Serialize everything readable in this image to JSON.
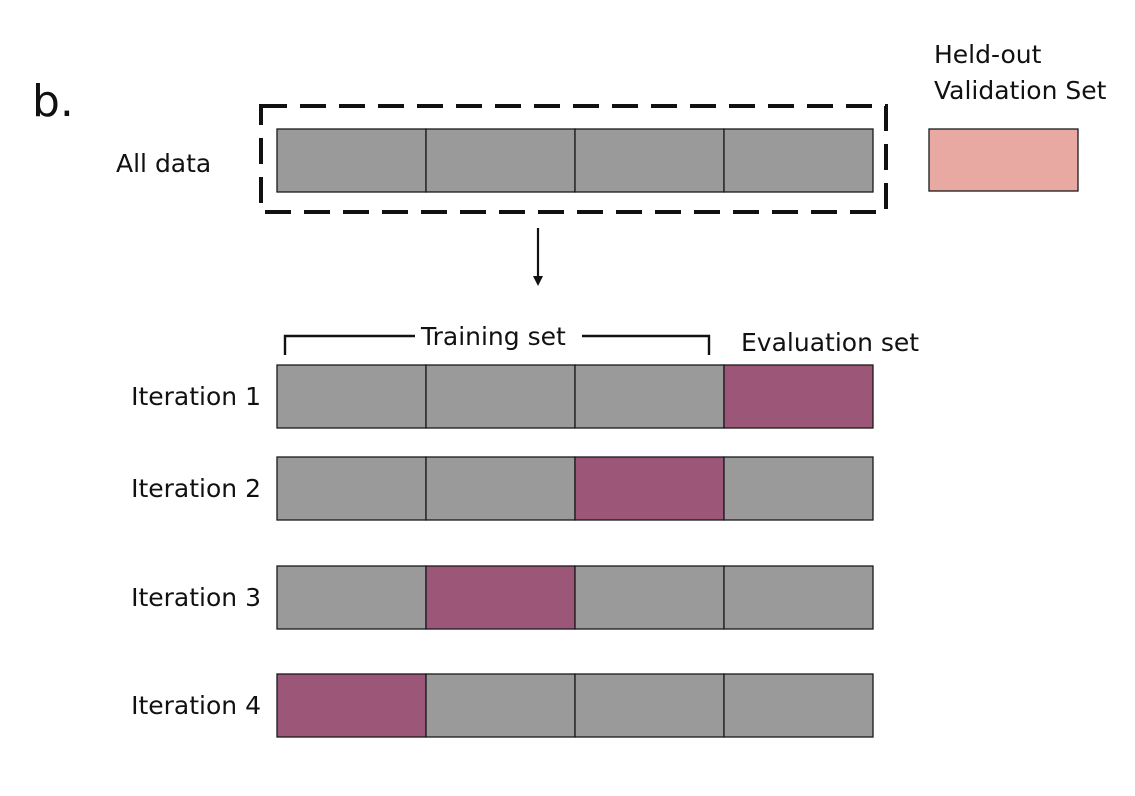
{
  "panel_label": "b.",
  "held_out": {
    "line1": "Held-out",
    "line2": "Validation Set"
  },
  "all_data_label": "All data",
  "training_set_label": "Training set",
  "evaluation_set_label": "Evaluation set",
  "fold_count": 4,
  "iterations": [
    {
      "label": "Iteration 1",
      "evaluation_fold": 4
    },
    {
      "label": "Iteration 2",
      "evaluation_fold": 3
    },
    {
      "label": "Iteration 3",
      "evaluation_fold": 2
    },
    {
      "label": "Iteration 4",
      "evaluation_fold": 1
    }
  ],
  "colors": {
    "training_fold": "#9a9a9a",
    "evaluation_fold": "#9c5678",
    "held_out_validation": "#e7a9a1",
    "outline": "#1a1a1a"
  }
}
